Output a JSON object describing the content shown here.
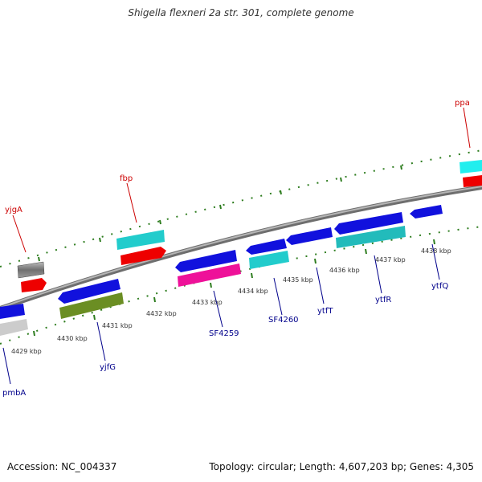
{
  "title": "Shigella flexneri 2a str. 301, complete genome",
  "footer": {
    "accession": "Accession: NC_004337",
    "summary": "Topology: circular; Length: 4,607,203 bp; Genes: 4,305"
  },
  "colors": {
    "backbone": "#8a8a8a",
    "tick_dots": "#2e7d1f",
    "forward_label": "#cc0000",
    "reverse_label": "#00008b"
  },
  "kbp_labels": [
    "4429 kbp",
    "4430 kbp",
    "4431 kbp",
    "4432 kbp",
    "4433 kbp",
    "4434 kbp",
    "4435 kbp",
    "4436 kbp",
    "4437 kbp",
    "4438 kbp"
  ],
  "forward_labels": [
    "yjgA",
    "fbp",
    "ppa"
  ],
  "reverse_labels": [
    "pmbA",
    "yjfG",
    "SF4259",
    "SF4260",
    "ytfT",
    "ytfR",
    "ytfQ"
  ]
}
